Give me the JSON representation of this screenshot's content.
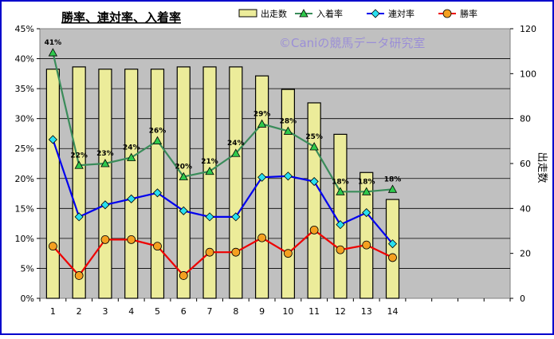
{
  "chart_data": {
    "type": "bar+line",
    "title": "勝率、連対率、入着率",
    "watermark": "©Caniの競馬データ研究室",
    "categories": [
      "1",
      "2",
      "3",
      "4",
      "5",
      "6",
      "7",
      "8",
      "9",
      "10",
      "11",
      "12",
      "13",
      "14"
    ],
    "y_left": {
      "ylim": [
        0,
        45
      ],
      "ticks": [
        "0%",
        "5%",
        "10%",
        "15%",
        "20%",
        "25%",
        "30%",
        "35%",
        "40%",
        "45%"
      ]
    },
    "y_right": {
      "label": "出走数",
      "ylim": [
        0,
        120
      ],
      "ticks": [
        "0",
        "20",
        "40",
        "60",
        "80",
        "100",
        "120"
      ]
    },
    "series": [
      {
        "name": "出走数",
        "kind": "bar",
        "axis": "right",
        "color": "#ecec9a",
        "values": [
          102,
          103,
          102,
          102,
          102,
          103,
          103,
          103,
          99,
          93,
          87,
          73,
          56,
          44
        ]
      },
      {
        "name": "入着率",
        "kind": "line",
        "axis": "left",
        "color": "#3a8c5a",
        "marker": "triangle",
        "values": [
          41,
          22.2,
          22.5,
          23.5,
          26.3,
          20.3,
          21.2,
          24.2,
          29.1,
          27.9,
          25.3,
          17.8,
          17.8,
          18.2
        ],
        "labels": [
          "41%",
          "22%",
          "23%",
          "24%",
          "26%",
          "20%",
          "21%",
          "24%",
          "29%",
          "28%",
          "25%",
          "18%",
          "18%",
          "18%"
        ]
      },
      {
        "name": "連対率",
        "kind": "line",
        "axis": "left",
        "color": "#0000ee",
        "marker": "diamond",
        "values": [
          26.5,
          13.6,
          15.6,
          16.6,
          17.6,
          14.6,
          13.6,
          13.6,
          20.2,
          20.4,
          19.5,
          12.3,
          14.3,
          9.1
        ]
      },
      {
        "name": "勝率",
        "kind": "line",
        "axis": "left",
        "color": "#ee0000",
        "marker": "circle",
        "values": [
          8.7,
          3.8,
          9.8,
          9.8,
          8.7,
          3.8,
          7.7,
          7.7,
          10.1,
          7.5,
          11.4,
          8.1,
          8.9,
          6.8
        ]
      }
    ],
    "legend_placement": "top",
    "grid": true,
    "colors": {
      "plot_bg": "#c0c0c0",
      "frame_border": "#0000cc",
      "chart_bg": "#ffffff",
      "gridline": "#000000"
    }
  }
}
